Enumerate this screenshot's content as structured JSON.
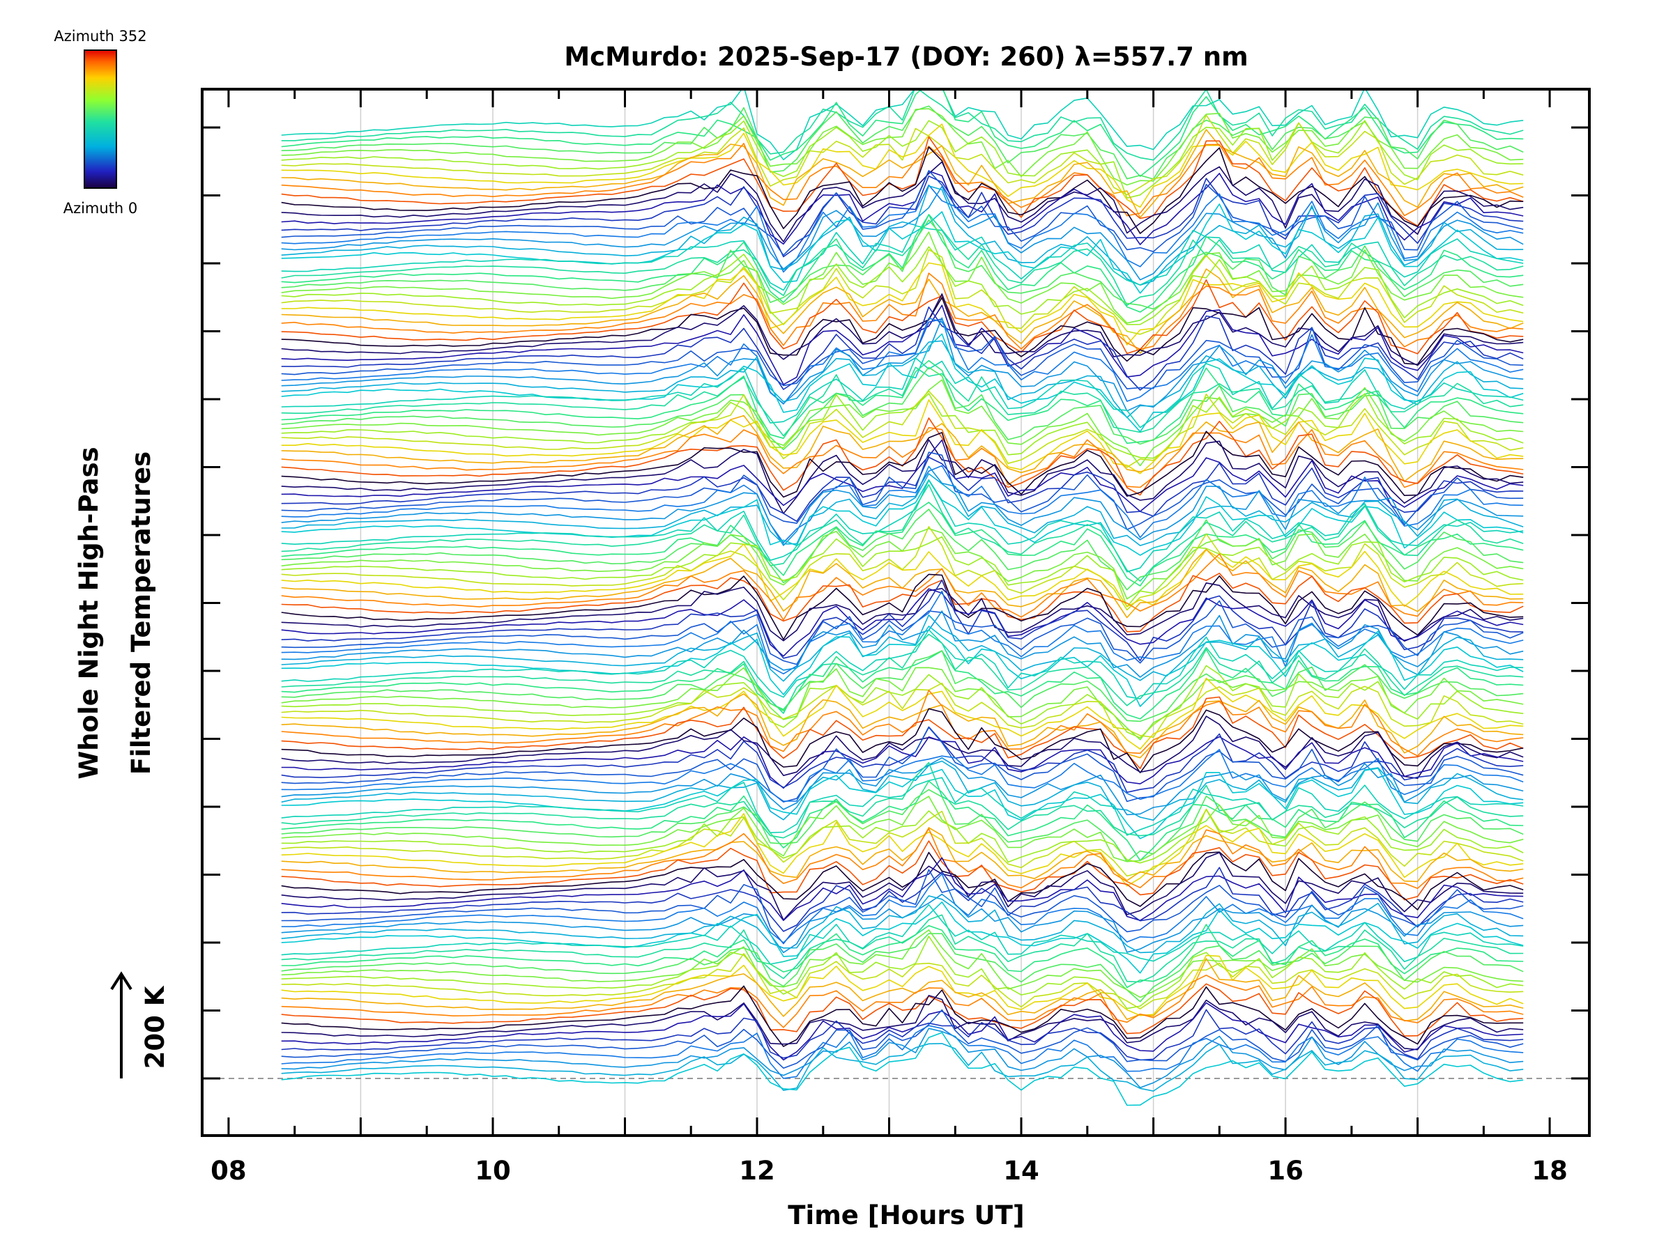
{
  "chart_data": {
    "type": "line",
    "title": "McMurdo: 2025-Sep-17 (DOY: 260) λ=557.7 nm",
    "xlabel": "Time [Hours UT]",
    "ylabel_lines": [
      "Whole Night High-Pass",
      "Filtered Temperatures"
    ],
    "scale_label": "200 K",
    "colorbar": {
      "top_label": "Azimuth 352",
      "bottom_label": "Azimuth 0",
      "colormap": "rainbow"
    },
    "xlim": [
      7.8,
      18.3
    ],
    "x_ticks": [
      {
        "value": 8,
        "label": "08"
      },
      {
        "value": 10,
        "label": "10"
      },
      {
        "value": 12,
        "label": "12"
      },
      {
        "value": 14,
        "label": "14"
      },
      {
        "value": 16,
        "label": "16"
      },
      {
        "value": 18,
        "label": "18"
      }
    ],
    "x_minor_step": 0.5,
    "data_start_hour": 8.4,
    "data_end_hour": 17.8,
    "sample_step_hours": 0.1,
    "y_axis_ticks": 15,
    "elevation_groups": 7,
    "traces_per_group": 20,
    "azimuth_range": [
      0,
      352
    ],
    "colors": {
      "axis": "#000000",
      "grid": "#d0d0d0",
      "baseline": "#999999",
      "background": "#ffffff"
    }
  }
}
